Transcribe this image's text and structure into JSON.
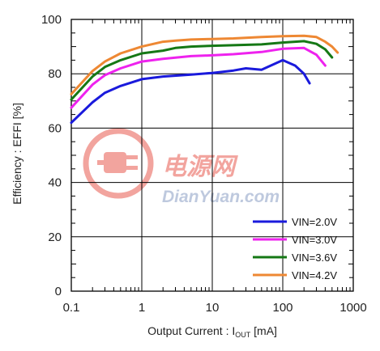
{
  "chart_data": {
    "type": "line",
    "xscale": "log",
    "xlim": [
      0.1,
      1000
    ],
    "ylim": [
      0,
      100
    ],
    "xticks": [
      0.1,
      1,
      10,
      100,
      1000
    ],
    "xtick_labels": [
      "0.1",
      "1",
      "10",
      "100",
      "1000"
    ],
    "yticks": [
      0,
      20,
      40,
      60,
      80,
      100
    ],
    "ytick_labels": [
      "0",
      "20",
      "40",
      "60",
      "80",
      "100"
    ],
    "xlabel": {
      "main": "Output  Current : I",
      "sub": "OUT",
      "unit": " [mA]"
    },
    "ylabel": "Efficiency : EFFI [%]",
    "grid": true,
    "legend_position": "bottom-right",
    "series": [
      {
        "name": "VIN=2.0V",
        "color": "#1a1adc",
        "x": [
          0.1,
          0.2,
          0.3,
          0.5,
          1,
          2,
          5,
          10,
          20,
          30,
          50,
          100,
          150,
          200,
          240
        ],
        "y": [
          62,
          69.5,
          73,
          75.5,
          78,
          79,
          79.7,
          80.3,
          81.2,
          82,
          81.5,
          85,
          83,
          80,
          76.5
        ]
      },
      {
        "name": "VIN=3.0V",
        "color": "#ee22ee",
        "x": [
          0.1,
          0.2,
          0.3,
          0.5,
          1,
          2,
          5,
          10,
          20,
          50,
          100,
          200,
          300,
          400
        ],
        "y": [
          67.5,
          76,
          79.5,
          82,
          84.5,
          85.5,
          86.5,
          86.8,
          87.2,
          88,
          89.2,
          89.5,
          87,
          83
        ]
      },
      {
        "name": "VIN=3.6V",
        "color": "#157815",
        "x": [
          0.1,
          0.2,
          0.3,
          0.5,
          1,
          2,
          3,
          5,
          10,
          20,
          50,
          100,
          200,
          300,
          400,
          500
        ],
        "y": [
          70.5,
          79,
          82.5,
          85,
          87.5,
          88.5,
          89.5,
          90,
          90.3,
          90.5,
          90.8,
          91.5,
          92,
          91,
          89,
          86
        ]
      },
      {
        "name": "VIN=4.2V",
        "color": "#ee8833",
        "x": [
          0.1,
          0.2,
          0.3,
          0.5,
          1,
          2,
          3,
          5,
          10,
          20,
          50,
          100,
          200,
          300,
          400,
          500,
          600
        ],
        "y": [
          72.5,
          81,
          84.5,
          87.5,
          90,
          91.8,
          92.2,
          92.6,
          92.8,
          93,
          93.5,
          93.8,
          94,
          93.5,
          91.8,
          90,
          87.8
        ]
      }
    ]
  },
  "watermark": {
    "cn_text": "电源网",
    "en_text": "DianYuan.com",
    "color_red": "#e85a50",
    "color_blue": "#8a9ec4"
  }
}
